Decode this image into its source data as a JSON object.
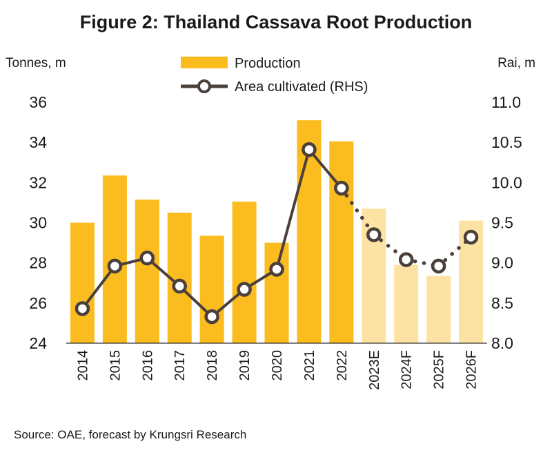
{
  "chart_data": {
    "type": "bar",
    "title": "Figure 2: Thailand Cassava Root Production",
    "ylabel_left": "Tonnes, m",
    "ylabel_right": "Rai, m",
    "categories": [
      "2014",
      "2015",
      "2016",
      "2017",
      "2018",
      "2019",
      "2020",
      "2021",
      "2022",
      "2023E",
      "2024F",
      "2025F",
      "2026F"
    ],
    "forecast_from_index": 9,
    "y_left_lim": [
      24,
      36
    ],
    "y_left_ticks": [
      "24",
      "26",
      "28",
      "30",
      "32",
      "34",
      "36"
    ],
    "y_right_lim": [
      8.0,
      11.0
    ],
    "y_right_ticks": [
      "8.0",
      "8.5",
      "9.0",
      "9.5",
      "10.0",
      "10.5",
      "11.0"
    ],
    "legend_position": "top-center",
    "grid": false,
    "series": [
      {
        "name": "Production",
        "type": "bar",
        "axis": "left",
        "values": [
          30.0,
          32.35,
          31.15,
          30.5,
          29.35,
          31.05,
          29.0,
          35.1,
          34.05,
          30.7,
          27.9,
          27.35,
          30.1
        ]
      },
      {
        "name": "Area cultivated (RHS)",
        "type": "line",
        "axis": "right",
        "values": [
          8.43,
          8.96,
          9.06,
          8.71,
          8.33,
          8.67,
          8.92,
          10.41,
          9.93,
          9.35,
          9.04,
          8.96,
          9.32
        ]
      }
    ],
    "source": "Source: OAE, forecast by Krungsri Research"
  },
  "colors": {
    "bar_actual": "#fbbc1f",
    "bar_forecast": "#fde3a3",
    "line": "#4a3f3b",
    "marker_fill": "#ffffff",
    "axis": "#000000"
  }
}
